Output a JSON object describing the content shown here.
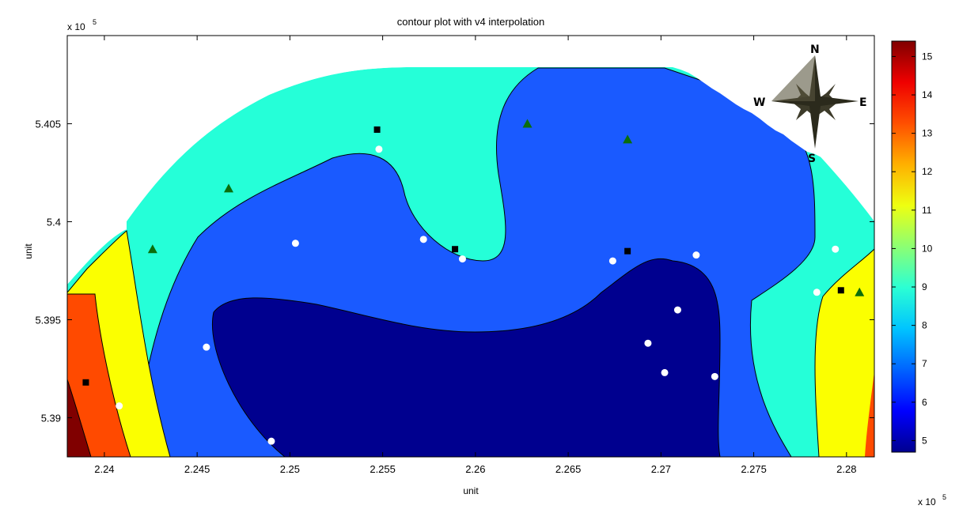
{
  "chart_data": {
    "type": "contour",
    "title": "contour plot with v4 interpolation",
    "xlabel": "unit",
    "ylabel": "unit",
    "x_multiplier": "x 10",
    "x_multiplier_exp": "5",
    "y_multiplier": "x 10",
    "y_multiplier_exp": "5",
    "xlim": [
      223.8,
      228.15
    ],
    "ylim": [
      538.8,
      540.95
    ],
    "x_ticks": [
      224.0,
      224.5,
      225.0,
      225.5,
      226.0,
      226.5,
      227.0,
      227.5,
      228.0
    ],
    "x_tick_labels": [
      "2.24",
      "2.245",
      "2.25",
      "2.255",
      "2.26",
      "2.265",
      "2.27",
      "2.275",
      "2.28"
    ],
    "y_ticks": [
      539.0,
      539.5,
      540.0,
      540.5
    ],
    "y_tick_labels": [
      "5.39",
      "5.395",
      "5.4",
      "5.405"
    ],
    "colorbar": {
      "ticks": [
        5,
        6,
        7,
        8,
        9,
        10,
        11,
        12,
        13,
        14,
        15
      ],
      "range": [
        4.7,
        15.4
      ],
      "colors": [
        "#00008f",
        "#0000ff",
        "#0063ff",
        "#00c4ff",
        "#2bffd4",
        "#8cff73",
        "#eeff11",
        "#ffb000",
        "#ff4f00",
        "#ef0000",
        "#800000"
      ]
    },
    "contour_levels": [
      {
        "name": "level-5",
        "color": "#00008f"
      },
      {
        "name": "level-6",
        "color": "#1a5aff"
      },
      {
        "name": "level-8-9",
        "color": "#25ffd8"
      },
      {
        "name": "level-11",
        "color": "#fbff00"
      },
      {
        "name": "level-13",
        "color": "#ff4a00"
      },
      {
        "name": "level-15",
        "color": "#800000"
      }
    ],
    "markers": {
      "white_circle": [
        [
          224.08,
          539.06
        ],
        [
          224.55,
          539.36
        ],
        [
          224.9,
          538.88
        ],
        [
          225.03,
          539.89
        ],
        [
          225.48,
          540.37
        ],
        [
          225.72,
          539.91
        ],
        [
          225.93,
          539.81
        ],
        [
          226.74,
          539.8
        ],
        [
          226.93,
          539.38
        ],
        [
          227.02,
          539.23
        ],
        [
          227.09,
          539.55
        ],
        [
          227.19,
          539.83
        ],
        [
          227.29,
          539.21
        ],
        [
          227.84,
          539.64
        ],
        [
          227.94,
          539.86
        ]
      ],
      "black_square": [
        [
          223.9,
          539.18
        ],
        [
          225.47,
          540.47
        ],
        [
          225.89,
          539.86
        ],
        [
          226.82,
          539.85
        ],
        [
          227.97,
          539.65
        ]
      ],
      "green_triangle": [
        [
          224.26,
          539.86
        ],
        [
          224.67,
          540.17
        ],
        [
          226.28,
          540.5
        ],
        [
          226.82,
          540.42
        ],
        [
          228.07,
          539.64
        ]
      ]
    },
    "compass": {
      "n": "N",
      "s": "S",
      "e": "E",
      "w": "W"
    },
    "grid": false
  }
}
